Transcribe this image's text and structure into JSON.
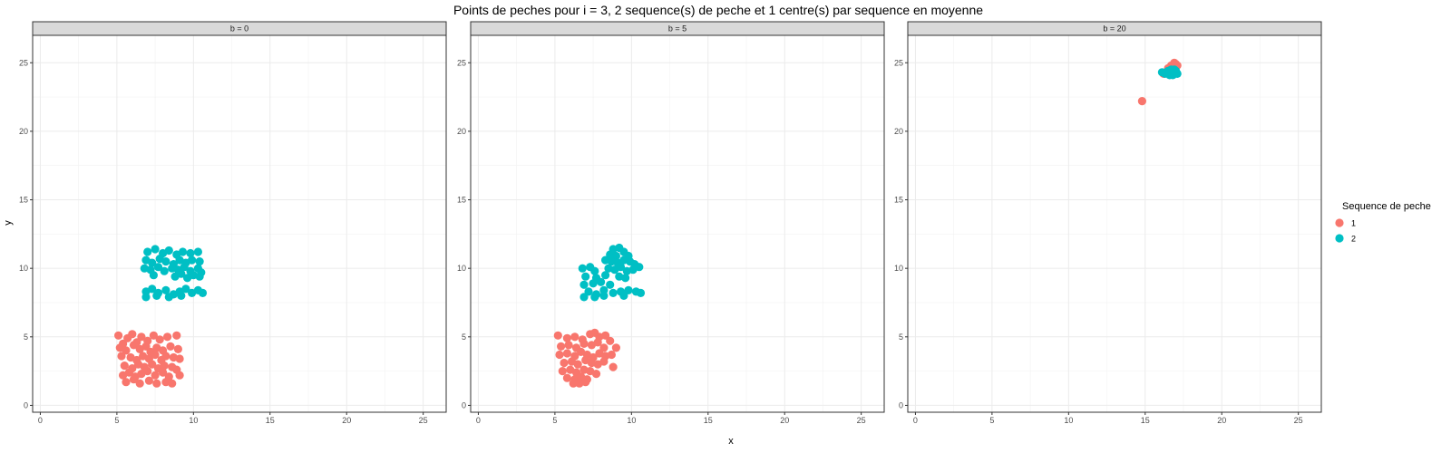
{
  "chart_data": {
    "type": "scatter",
    "title": "Points de peches pour i = 3, 2 sequence(s) de peche et 1 centre(s) par sequence en moyenne",
    "xlabel": "x",
    "ylabel": "y",
    "xlim": [
      -0.5,
      26.5
    ],
    "ylim": [
      -0.5,
      27
    ],
    "xticks": [
      0,
      5,
      10,
      15,
      20,
      25
    ],
    "yticks": [
      0,
      5,
      10,
      15,
      20,
      25
    ],
    "grid": true,
    "legend": {
      "title": "Sequence de peche",
      "position": "right",
      "entries": [
        {
          "label": "1",
          "color": "#F8766D"
        },
        {
          "label": "2",
          "color": "#00BFC4"
        }
      ]
    },
    "facets": [
      {
        "strip": "b = 0",
        "series": [
          {
            "name": "1",
            "color": "#F8766D",
            "points": [
              [
                5.1,
                5.1
              ],
              [
                5.4,
                4.5
              ],
              [
                5.7,
                4.9
              ],
              [
                6.0,
                5.2
              ],
              [
                6.3,
                4.6
              ],
              [
                6.6,
                5.0
              ],
              [
                7.0,
                4.7
              ],
              [
                7.4,
                5.1
              ],
              [
                7.8,
                4.8
              ],
              [
                8.3,
                5.0
              ],
              [
                8.9,
                5.1
              ],
              [
                5.2,
                4.2
              ],
              [
                5.6,
                4.0
              ],
              [
                6.1,
                4.4
              ],
              [
                6.5,
                4.1
              ],
              [
                6.9,
                4.3
              ],
              [
                7.2,
                3.9
              ],
              [
                7.6,
                4.2
              ],
              [
                8.0,
                4.0
              ],
              [
                8.5,
                4.3
              ],
              [
                9.0,
                4.1
              ],
              [
                5.3,
                3.6
              ],
              [
                5.9,
                3.5
              ],
              [
                6.3,
                3.3
              ],
              [
                6.7,
                3.6
              ],
              [
                7.1,
                3.4
              ],
              [
                7.5,
                3.7
              ],
              [
                7.9,
                3.3
              ],
              [
                8.2,
                3.6
              ],
              [
                8.7,
                3.5
              ],
              [
                9.1,
                3.4
              ],
              [
                5.5,
                2.9
              ],
              [
                6.0,
                2.7
              ],
              [
                6.4,
                3.0
              ],
              [
                6.8,
                2.8
              ],
              [
                7.3,
                3.0
              ],
              [
                7.7,
                2.7
              ],
              [
                8.1,
                2.9
              ],
              [
                8.6,
                2.8
              ],
              [
                5.4,
                2.2
              ],
              [
                5.8,
                2.4
              ],
              [
                6.2,
                2.1
              ],
              [
                6.6,
                2.3
              ],
              [
                7.0,
                2.5
              ],
              [
                7.5,
                2.2
              ],
              [
                8.0,
                2.4
              ],
              [
                8.4,
                2.1
              ],
              [
                8.9,
                2.6
              ],
              [
                9.1,
                2.2
              ],
              [
                5.6,
                1.7
              ],
              [
                6.1,
                1.9
              ],
              [
                6.5,
                1.6
              ],
              [
                7.1,
                1.8
              ],
              [
                7.6,
                1.6
              ],
              [
                8.2,
                1.7
              ],
              [
                8.6,
                1.6
              ]
            ]
          },
          {
            "name": "2",
            "color": "#00BFC4",
            "points": [
              [
                7.0,
                11.2
              ],
              [
                7.5,
                11.4
              ],
              [
                8.0,
                11.1
              ],
              [
                8.4,
                11.3
              ],
              [
                8.9,
                11.0
              ],
              [
                9.3,
                11.2
              ],
              [
                9.8,
                11.1
              ],
              [
                10.3,
                11.2
              ],
              [
                6.9,
                10.6
              ],
              [
                7.3,
                10.4
              ],
              [
                7.8,
                10.7
              ],
              [
                8.2,
                10.5
              ],
              [
                8.7,
                10.3
              ],
              [
                9.1,
                10.6
              ],
              [
                9.5,
                10.4
              ],
              [
                9.9,
                10.6
              ],
              [
                10.4,
                10.5
              ],
              [
                6.8,
                10.0
              ],
              [
                7.2,
                9.9
              ],
              [
                7.7,
                10.1
              ],
              [
                8.1,
                9.8
              ],
              [
                8.6,
                10.0
              ],
              [
                9.0,
                9.9
              ],
              [
                9.4,
                10.1
              ],
              [
                9.8,
                9.8
              ],
              [
                10.3,
                10.0
              ],
              [
                10.5,
                9.7
              ],
              [
                7.4,
                9.5
              ],
              [
                8.8,
                9.4
              ],
              [
                9.2,
                9.6
              ],
              [
                9.6,
                9.3
              ],
              [
                10.0,
                9.5
              ],
              [
                10.4,
                9.4
              ],
              [
                6.9,
                8.3
              ],
              [
                7.3,
                8.5
              ],
              [
                7.7,
                8.2
              ],
              [
                8.2,
                8.4
              ],
              [
                8.7,
                8.1
              ],
              [
                9.1,
                8.3
              ],
              [
                9.5,
                8.5
              ],
              [
                9.9,
                8.2
              ],
              [
                10.3,
                8.4
              ],
              [
                10.6,
                8.2
              ],
              [
                6.9,
                7.9
              ],
              [
                7.6,
                8.0
              ],
              [
                8.4,
                7.9
              ],
              [
                9.2,
                8.0
              ]
            ]
          }
        ]
      },
      {
        "strip": "b = 5",
        "series": [
          {
            "name": "1",
            "color": "#F8766D",
            "points": [
              [
                5.2,
                5.1
              ],
              [
                5.8,
                4.9
              ],
              [
                6.3,
                5.0
              ],
              [
                6.8,
                4.8
              ],
              [
                7.3,
                5.2
              ],
              [
                7.6,
                5.3
              ],
              [
                7.9,
                5.0
              ],
              [
                8.3,
                5.1
              ],
              [
                8.6,
                4.7
              ],
              [
                5.4,
                4.3
              ],
              [
                5.9,
                4.4
              ],
              [
                6.4,
                4.2
              ],
              [
                6.9,
                4.5
              ],
              [
                7.4,
                4.4
              ],
              [
                7.8,
                4.6
              ],
              [
                8.2,
                4.2
              ],
              [
                9.0,
                4.2
              ],
              [
                5.3,
                3.7
              ],
              [
                5.8,
                3.8
              ],
              [
                6.3,
                3.6
              ],
              [
                6.7,
                3.9
              ],
              [
                7.1,
                3.7
              ],
              [
                7.5,
                3.5
              ],
              [
                7.9,
                3.8
              ],
              [
                8.3,
                3.6
              ],
              [
                8.7,
                3.7
              ],
              [
                5.6,
                3.1
              ],
              [
                6.1,
                3.2
              ],
              [
                6.5,
                3.0
              ],
              [
                7.0,
                3.3
              ],
              [
                7.4,
                3.1
              ],
              [
                7.8,
                3.0
              ],
              [
                8.2,
                3.2
              ],
              [
                5.5,
                2.5
              ],
              [
                6.0,
                2.6
              ],
              [
                6.4,
                2.4
              ],
              [
                6.9,
                2.6
              ],
              [
                7.3,
                2.5
              ],
              [
                7.7,
                2.3
              ],
              [
                8.8,
                2.8
              ],
              [
                5.8,
                2.0
              ],
              [
                6.3,
                1.9
              ],
              [
                6.7,
                2.1
              ],
              [
                7.1,
                1.9
              ],
              [
                6.2,
                1.6
              ],
              [
                6.6,
                1.6
              ],
              [
                7.0,
                1.7
              ]
            ]
          },
          {
            "name": "2",
            "color": "#00BFC4",
            "points": [
              [
                8.8,
                11.4
              ],
              [
                9.2,
                11.5
              ],
              [
                9.5,
                11.2
              ],
              [
                8.6,
                11.0
              ],
              [
                9.0,
                10.9
              ],
              [
                9.8,
                10.9
              ],
              [
                8.3,
                10.6
              ],
              [
                8.7,
                10.5
              ],
              [
                9.1,
                10.4
              ],
              [
                9.5,
                10.6
              ],
              [
                9.9,
                10.5
              ],
              [
                10.2,
                10.3
              ],
              [
                6.8,
                10.0
              ],
              [
                7.3,
                10.1
              ],
              [
                7.6,
                9.8
              ],
              [
                8.5,
                10.0
              ],
              [
                8.9,
                9.9
              ],
              [
                9.3,
                10.1
              ],
              [
                9.7,
                9.8
              ],
              [
                10.1,
                9.9
              ],
              [
                10.5,
                10.1
              ],
              [
                7.0,
                9.4
              ],
              [
                7.7,
                9.3
              ],
              [
                8.3,
                9.5
              ],
              [
                9.2,
                9.4
              ],
              [
                9.6,
                9.3
              ],
              [
                6.9,
                8.8
              ],
              [
                7.5,
                8.9
              ],
              [
                8.0,
                9.0
              ],
              [
                8.6,
                8.8
              ],
              [
                7.2,
                8.3
              ],
              [
                7.7,
                8.1
              ],
              [
                8.2,
                8.4
              ],
              [
                8.8,
                8.2
              ],
              [
                9.3,
                8.3
              ],
              [
                9.8,
                8.4
              ],
              [
                10.3,
                8.3
              ],
              [
                10.6,
                8.2
              ],
              [
                6.9,
                7.9
              ],
              [
                7.6,
                7.9
              ],
              [
                8.2,
                8.0
              ],
              [
                9.5,
                8.0
              ]
            ]
          }
        ]
      },
      {
        "strip": "b = 20",
        "series": [
          {
            "name": "1",
            "color": "#F8766D",
            "points": [
              [
                14.8,
                22.2
              ],
              [
                16.5,
                24.6
              ],
              [
                16.7,
                24.8
              ],
              [
                16.9,
                25.0
              ],
              [
                17.0,
                24.9
              ],
              [
                16.6,
                24.4
              ],
              [
                16.8,
                24.7
              ],
              [
                16.4,
                24.3
              ],
              [
                16.2,
                24.2
              ],
              [
                17.1,
                24.8
              ]
            ]
          },
          {
            "name": "2",
            "color": "#00BFC4",
            "points": [
              [
                16.1,
                24.3
              ],
              [
                16.3,
                24.2
              ],
              [
                16.5,
                24.4
              ],
              [
                16.7,
                24.3
              ],
              [
                16.9,
                24.2
              ],
              [
                17.0,
                24.4
              ],
              [
                16.6,
                24.1
              ],
              [
                16.8,
                24.1
              ],
              [
                17.1,
                24.2
              ],
              [
                16.4,
                24.3
              ],
              [
                16.9,
                24.5
              ],
              [
                16.7,
                24.5
              ]
            ]
          }
        ]
      }
    ]
  }
}
